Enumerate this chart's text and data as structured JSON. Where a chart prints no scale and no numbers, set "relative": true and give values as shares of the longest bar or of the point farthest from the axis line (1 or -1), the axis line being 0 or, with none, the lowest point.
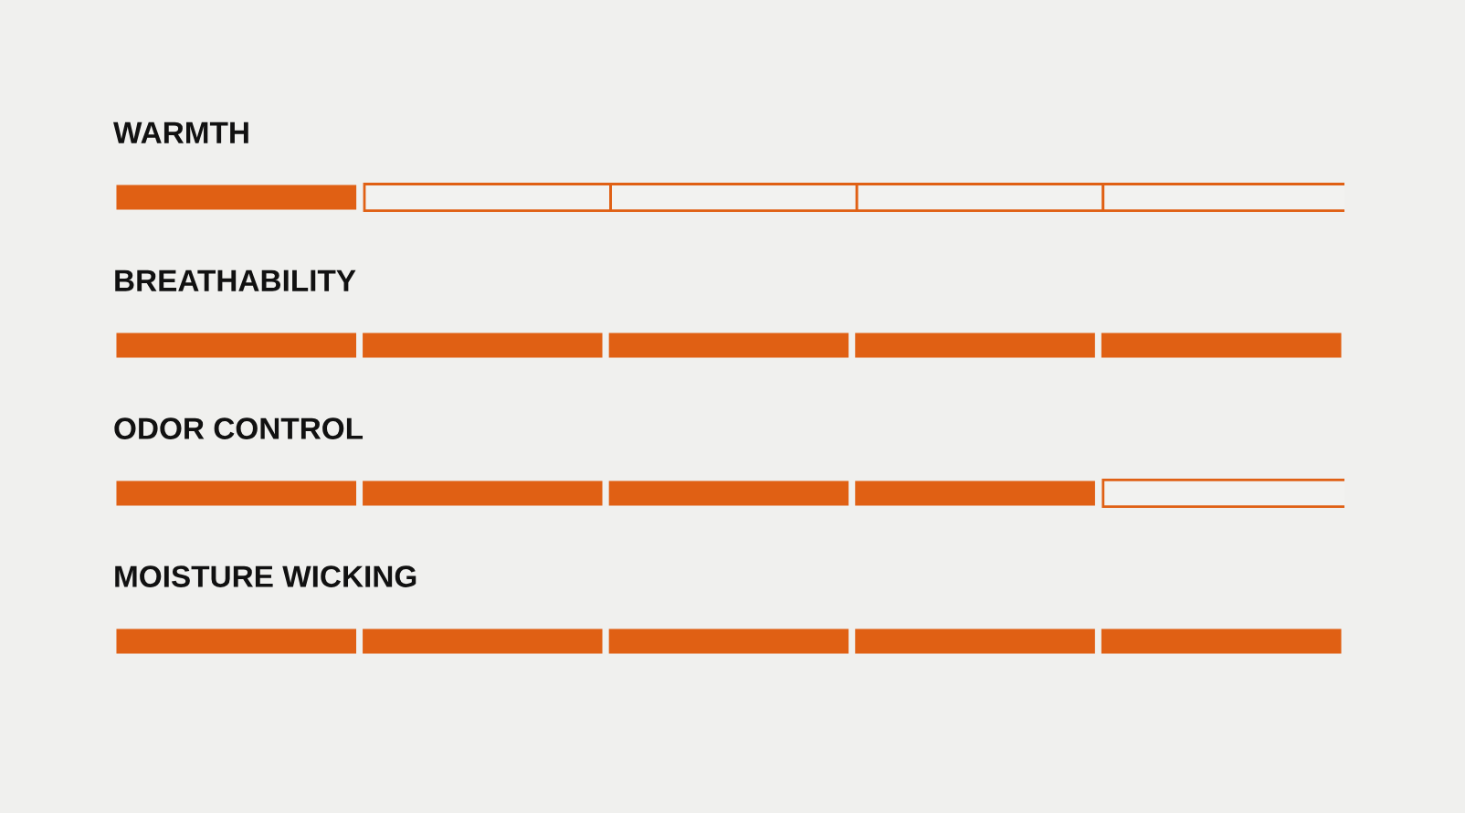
{
  "chart_data": {
    "type": "bar",
    "orientation": "horizontal",
    "stacked": true,
    "relative": true,
    "legend": false,
    "categories": [
      "WARMTH",
      "BREATHABILITY",
      "ODOR CONTROL",
      "MOISTURE WICKING"
    ],
    "series": [
      {
        "color": "#e06014",
        "colors": [
          "#e06014",
          "#e06014",
          "#e06014",
          "#e06014"
        ],
        "values": [
          0.2,
          0.2,
          0.2,
          0.2
        ]
      },
      {
        "color": "#e06014",
        "colors": [
          "#f2f2f0",
          "#e06014",
          "#e06014",
          "#e06014"
        ],
        "values": [
          0.2,
          0.2,
          0.2,
          0.2
        ]
      },
      {
        "color": "#e06014",
        "colors": [
          "#f2f2f0",
          "#e06014",
          "#e06014",
          "#e06014"
        ],
        "values": [
          0.2,
          0.2,
          0.2,
          0.2
        ]
      },
      {
        "color": "#e06014",
        "colors": [
          "#f2f2f0",
          "#e06014",
          "#e06014",
          "#e06014"
        ],
        "values": [
          0.2,
          0.2,
          0.2,
          0.2
        ]
      },
      {
        "color": "#e06014",
        "colors": [
          "#f2f2f0",
          "#e06014",
          "#f2f2f0",
          "#e06014"
        ],
        "values": [
          0.2,
          0.2,
          0.2,
          0.2
        ]
      }
    ]
  }
}
